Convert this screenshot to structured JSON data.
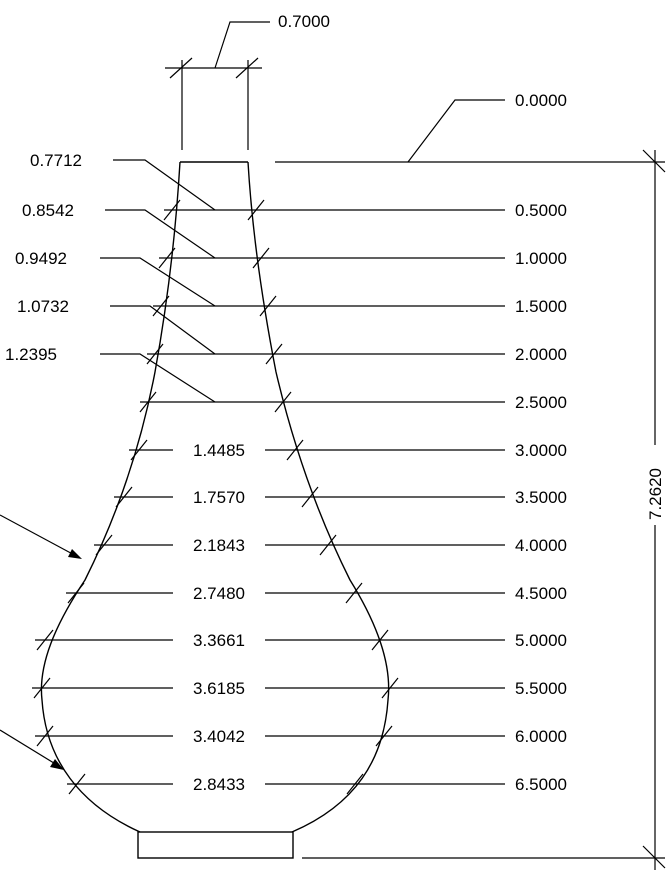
{
  "neck_width": "0.7000",
  "top_level": "0.0000",
  "total_height": "7.2620",
  "stations": [
    {
      "height": "0.5000",
      "width": "0.8542"
    },
    {
      "height": "1.0000",
      "width": "0.9492"
    },
    {
      "height": "1.5000",
      "width": "1.0732"
    },
    {
      "height": "2.0000",
      "width": "1.2395"
    },
    {
      "height": "2.5000",
      "width": ""
    },
    {
      "height": "3.0000",
      "width": "1.4485"
    },
    {
      "height": "3.5000",
      "width": "1.7570"
    },
    {
      "height": "4.0000",
      "width": "2.1843"
    },
    {
      "height": "4.5000",
      "width": "2.7480"
    },
    {
      "height": "5.0000",
      "width": "3.3661"
    },
    {
      "height": "5.5000",
      "width": "3.6185"
    },
    {
      "height": "6.0000",
      "width": "3.4042"
    },
    {
      "height": "6.5000",
      "width": "2.8433"
    }
  ],
  "top_width": "0.7712"
}
